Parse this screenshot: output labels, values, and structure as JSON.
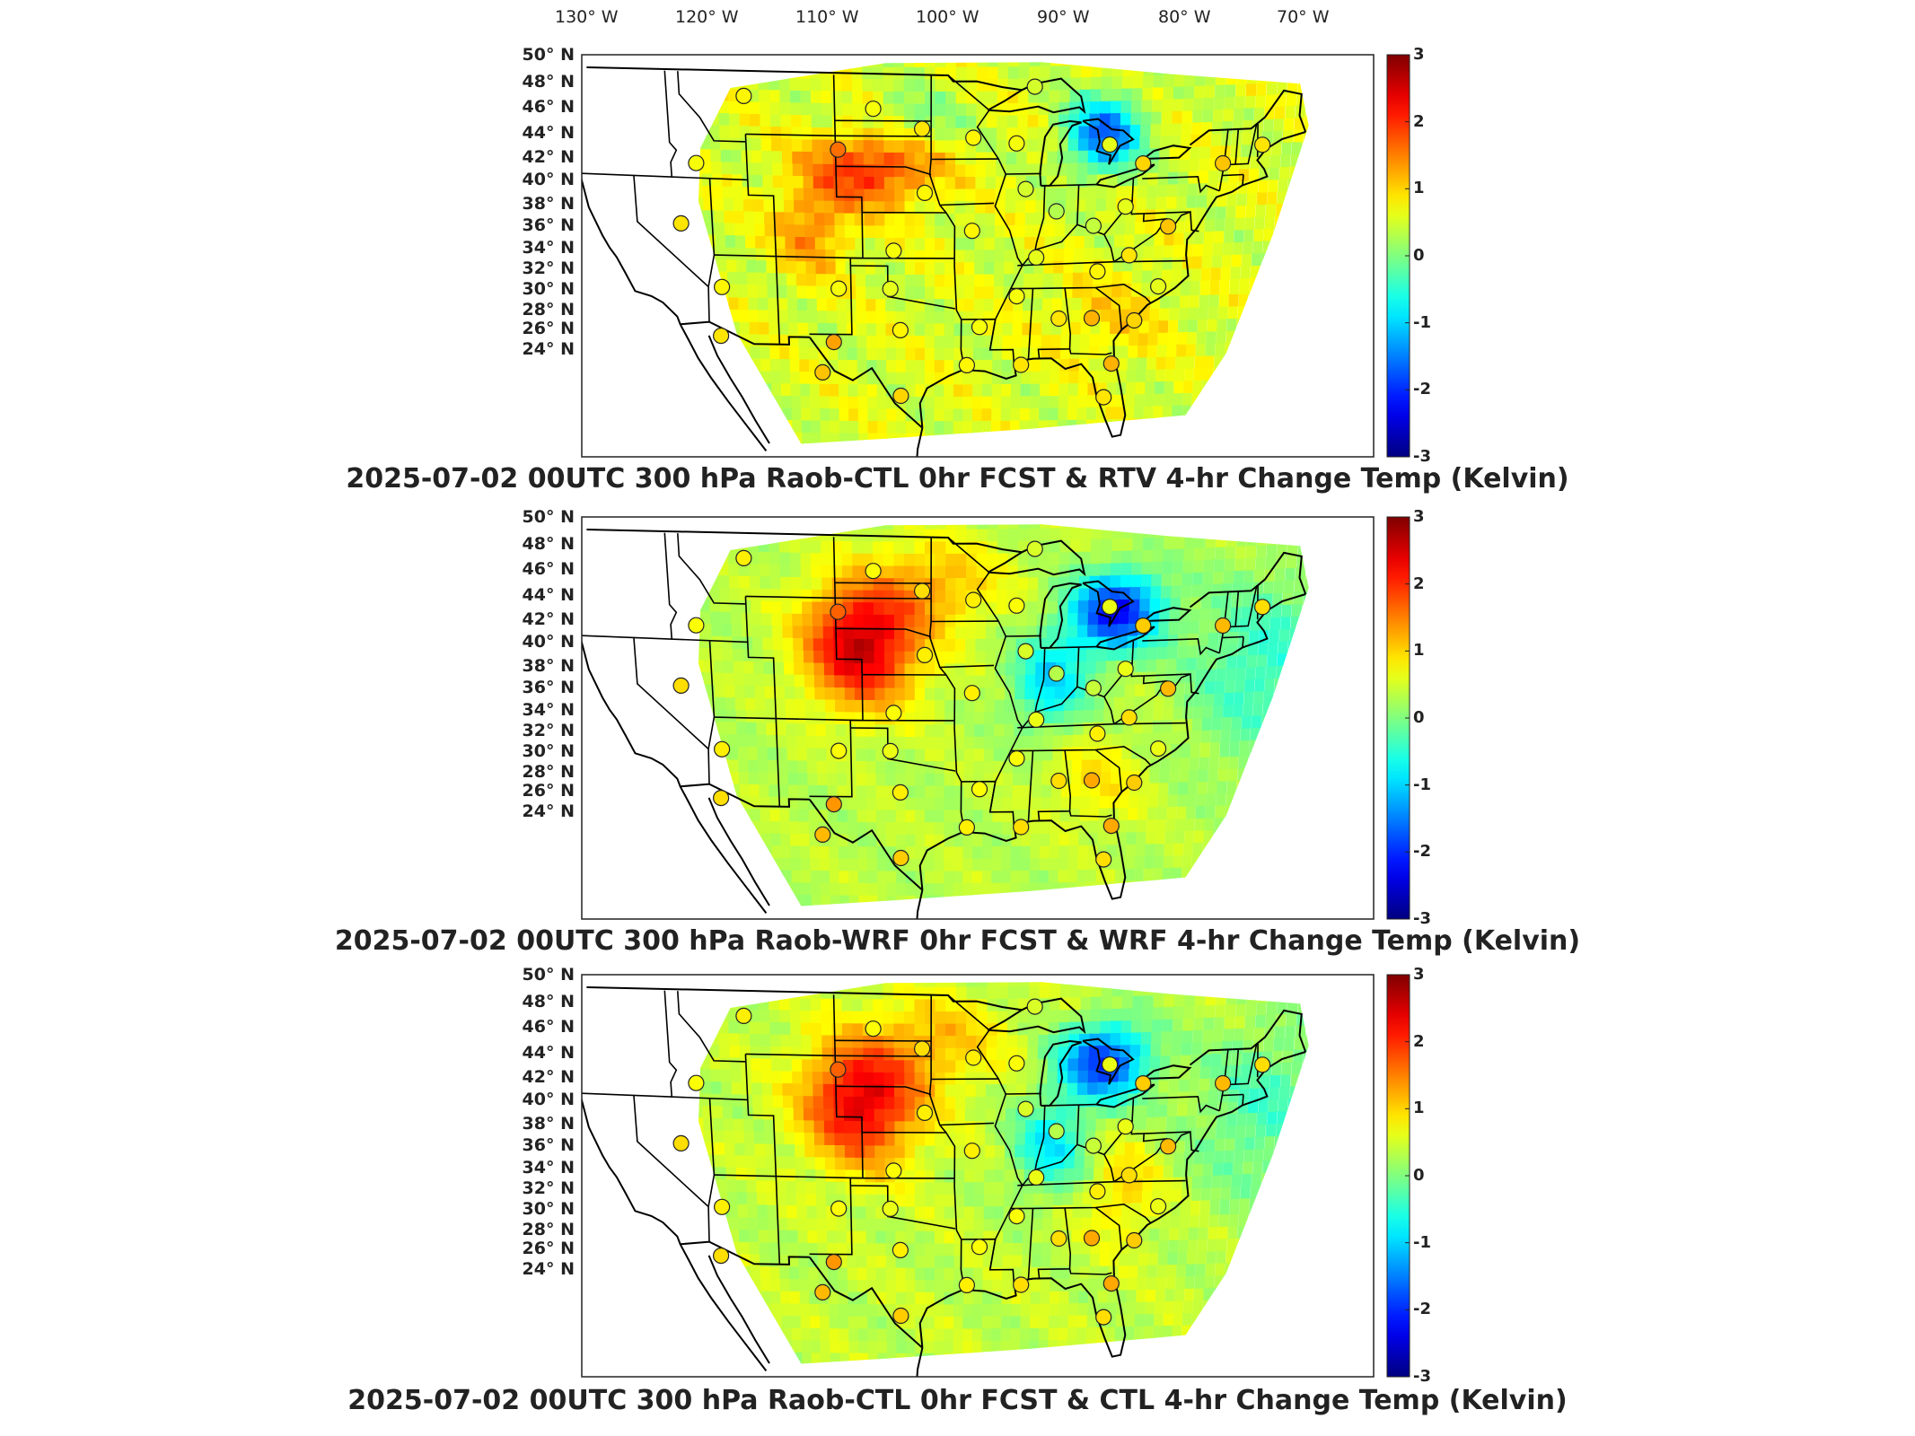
{
  "longitude_labels": [
    "130° W",
    "120° W",
    "110° W",
    "100° W",
    "90° W",
    "80° W",
    "70° W"
  ],
  "latitude_labels": [
    "50° N",
    "48° N",
    "46° N",
    "44° N",
    "42° N",
    "40° N",
    "38° N",
    "36° N",
    "34° N",
    "32° N",
    "30° N",
    "28° N",
    "26° N",
    "24° N"
  ],
  "colorbar": {
    "ticks": [
      "3",
      "2",
      "1",
      "0",
      "-1",
      "-2",
      "-3"
    ],
    "range": [
      -3,
      3
    ],
    "colormap": "jet",
    "colors": [
      "#00008f",
      "#0000ff",
      "#00ffff",
      "#ffff00",
      "#ff0000",
      "#800000"
    ]
  },
  "panels": [
    {
      "title": "2025-07-02 00UTC 300 hPa Raob-CTL 0hr FCST & RTV 4-hr Change Temp (Kelvin)",
      "field_pattern": "rtv",
      "warm_anomaly_region": "Nebraska / Colorado",
      "cold_anomaly_region": "Lake Huron / Michigan"
    },
    {
      "title": "2025-07-02 00UTC 300 hPa Raob-WRF 0hr FCST & WRF 4-hr Change Temp (Kelvin)",
      "field_pattern": "wrf",
      "warm_anomaly_region": "Nebraska / Colorado",
      "cold_anomaly_region": "Michigan / Ohio Valley"
    },
    {
      "title": "2025-07-02 00UTC 300 hPa Raob-CTL 0hr FCST & CTL 4-hr Change Temp (Kelvin)",
      "field_pattern": "ctl",
      "warm_anomaly_region": "Nebraska / Colorado",
      "cold_anomaly_region": "Michigan / Ohio Valley"
    }
  ],
  "raob_stations": [
    {
      "lon": -111.0,
      "lat": 47.5,
      "value": 0.8
    },
    {
      "lon": -101.0,
      "lat": 46.8,
      "value": 0.7
    },
    {
      "lon": -97.2,
      "lat": 45.5,
      "value": 0.9
    },
    {
      "lon": -88.5,
      "lat": 48.2,
      "value": 0.5
    },
    {
      "lon": -103.8,
      "lat": 44.1,
      "value": 1.6
    },
    {
      "lon": -89.8,
      "lat": 44.5,
      "value": 0.7
    },
    {
      "lon": -82.5,
      "lat": 44.3,
      "value": 0.6
    },
    {
      "lon": -93.2,
      "lat": 44.9,
      "value": 0.8
    },
    {
      "lon": -115.0,
      "lat": 43.0,
      "value": 0.7
    },
    {
      "lon": -79.8,
      "lat": 43.0,
      "value": 1.0
    },
    {
      "lon": -73.5,
      "lat": 42.8,
      "value": 1.1
    },
    {
      "lon": -70.5,
      "lat": 43.9,
      "value": 0.9
    },
    {
      "lon": -97.0,
      "lat": 41.3,
      "value": 0.8
    },
    {
      "lon": -89.0,
      "lat": 41.5,
      "value": 0.5
    },
    {
      "lon": -86.5,
      "lat": 40.0,
      "value": 0.3
    },
    {
      "lon": -81.0,
      "lat": 40.2,
      "value": 0.6
    },
    {
      "lon": -83.5,
      "lat": 39.0,
      "value": 0.4
    },
    {
      "lon": -116.5,
      "lat": 39.0,
      "value": 0.9
    },
    {
      "lon": -99.5,
      "lat": 37.5,
      "value": 0.7
    },
    {
      "lon": -93.2,
      "lat": 38.8,
      "value": 0.8
    },
    {
      "lon": -88.0,
      "lat": 37.0,
      "value": 0.6
    },
    {
      "lon": -80.5,
      "lat": 37.0,
      "value": 0.9
    },
    {
      "lon": -77.5,
      "lat": 38.8,
      "value": 1.1
    },
    {
      "lon": -83.0,
      "lat": 36.0,
      "value": 0.8
    },
    {
      "lon": -113.5,
      "lat": 35.0,
      "value": 0.8
    },
    {
      "lon": -104.0,
      "lat": 35.0,
      "value": 0.7
    },
    {
      "lon": -99.8,
      "lat": 35.0,
      "value": 0.6
    },
    {
      "lon": -89.5,
      "lat": 34.5,
      "value": 0.7
    },
    {
      "lon": -78.0,
      "lat": 35.0,
      "value": 0.6
    },
    {
      "lon": -86.0,
      "lat": 33.0,
      "value": 0.9
    },
    {
      "lon": -83.3,
      "lat": 33.0,
      "value": 1.2
    },
    {
      "lon": -79.8,
      "lat": 32.8,
      "value": 1.0
    },
    {
      "lon": -104.5,
      "lat": 31.5,
      "value": 1.3
    },
    {
      "lon": -99.0,
      "lat": 32.3,
      "value": 0.8
    },
    {
      "lon": -92.5,
      "lat": 32.5,
      "value": 0.7
    },
    {
      "lon": -113.8,
      "lat": 31.8,
      "value": 0.9
    },
    {
      "lon": -105.5,
      "lat": 29.5,
      "value": 1.1
    },
    {
      "lon": -93.5,
      "lat": 30.0,
      "value": 0.8
    },
    {
      "lon": -89.0,
      "lat": 30.0,
      "value": 0.9
    },
    {
      "lon": -81.5,
      "lat": 30.0,
      "value": 1.2
    },
    {
      "lon": -99.0,
      "lat": 28.0,
      "value": 1.0
    },
    {
      "lon": -82.0,
      "lat": 27.8,
      "value": 0.9
    }
  ]
}
